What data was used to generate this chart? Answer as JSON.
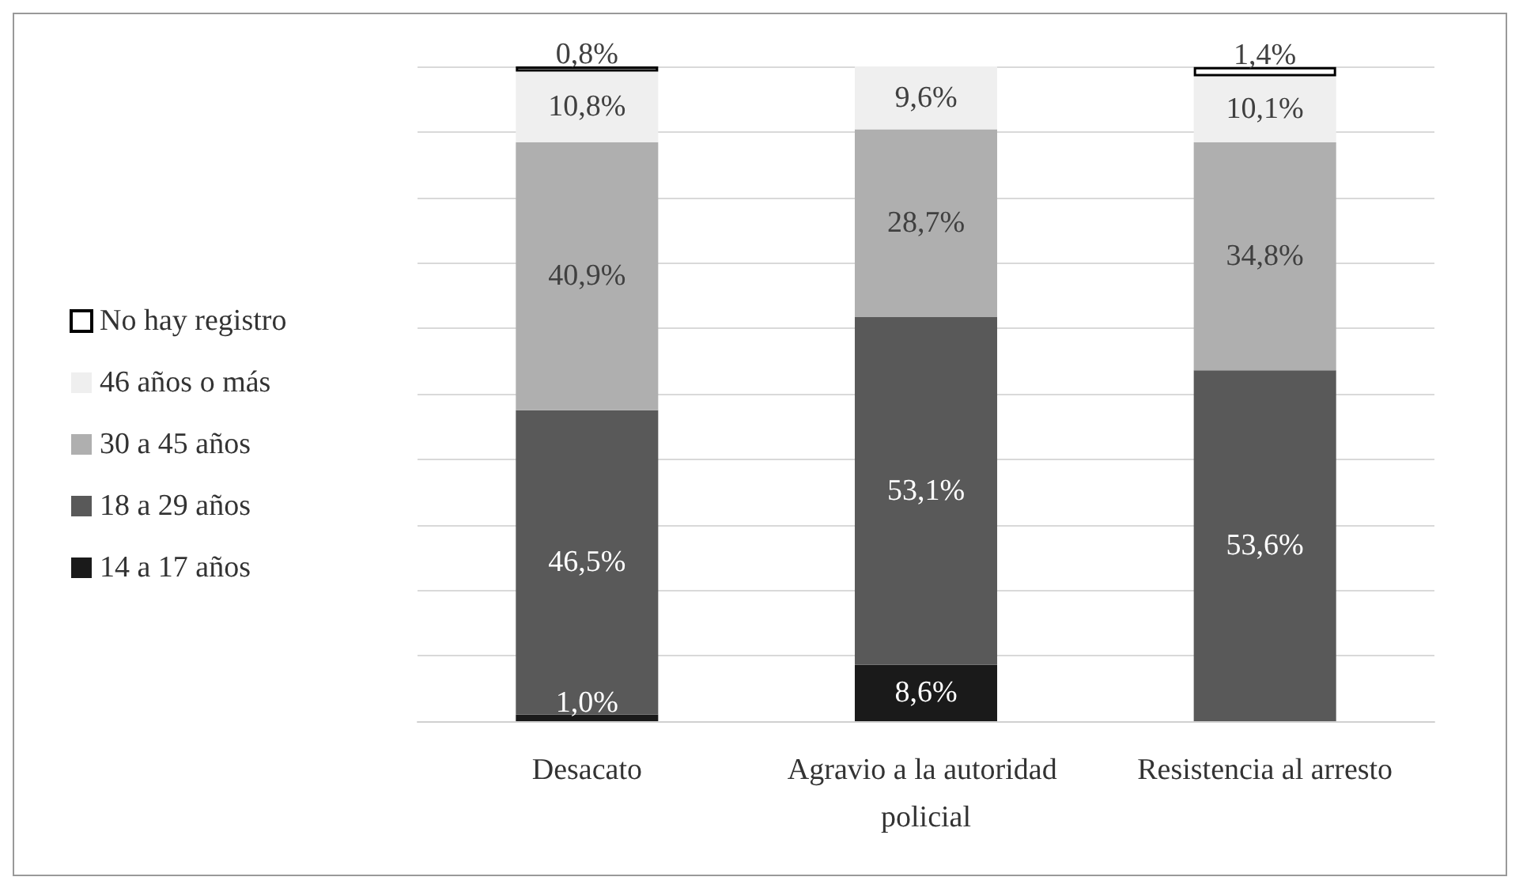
{
  "chart_data": {
    "type": "bar",
    "stacked": true,
    "categories": [
      "Desacato",
      "Agravio a la autoridad policial",
      "Resistencia al arresto"
    ],
    "series": [
      {
        "name": "14 a 17 años",
        "color": "#1a1a1a",
        "values": [
          1.0,
          8.6,
          null
        ],
        "value_labels": [
          "1,0%",
          "8,6%",
          null
        ]
      },
      {
        "name": "18 a 29 años",
        "color": "#595959",
        "values": [
          46.5,
          53.1,
          53.6
        ],
        "value_labels": [
          "46,5%",
          "53,1%",
          "53,6%"
        ]
      },
      {
        "name": "30 a 45 años",
        "color": "#afafaf",
        "values": [
          40.9,
          28.7,
          34.8
        ],
        "value_labels": [
          "40,9%",
          "28,7%",
          "34,8%"
        ]
      },
      {
        "name": "46 años o más",
        "color": "#efefef",
        "values": [
          10.8,
          9.6,
          10.1
        ],
        "value_labels": [
          "10,8%",
          "9,6%",
          "10,1%"
        ]
      },
      {
        "name": "No hay registro",
        "color": "#ffffff",
        "values": [
          0.8,
          null,
          1.4
        ],
        "value_labels": [
          "0,8%",
          null,
          "1,4%"
        ]
      }
    ],
    "ylim": [
      0,
      100
    ],
    "yticks": [
      {
        "value": 0,
        "label": null
      },
      {
        "value": 10,
        "label": null
      },
      {
        "value": 20,
        "label": null
      },
      {
        "value": 30,
        "label": null
      },
      {
        "value": 40,
        "label": null
      },
      {
        "value": 50,
        "label": null
      },
      {
        "value": 60,
        "label": null
      },
      {
        "value": 70,
        "label": null
      },
      {
        "value": 80,
        "label": null
      },
      {
        "value": 90,
        "label": null
      },
      {
        "value": 100,
        "label": null
      }
    ],
    "grid": "y",
    "legend": "left",
    "tick_labels": "x"
  }
}
